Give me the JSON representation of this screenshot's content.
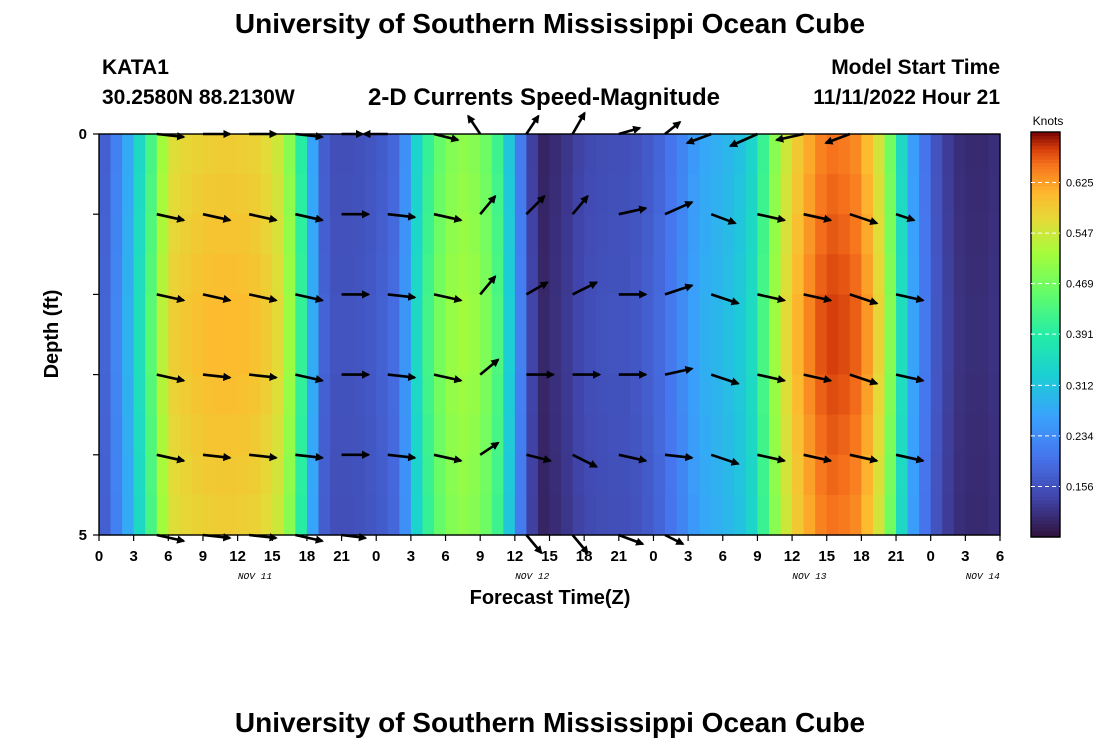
{
  "header": {
    "title": "University of Southern Mississippi Ocean Cube",
    "station": "KATA1",
    "coordinates": "30.2580N  88.2130W",
    "chart_title": "2-D Currents Speed-Magnitude",
    "model_start_label": "Model Start Time",
    "model_start_value": "11/11/2022 Hour 21"
  },
  "footer": {
    "title": "University of Southern Mississippi Ocean Cube"
  },
  "chart_data": {
    "type": "heatmap",
    "title": "2-D Currents Speed-Magnitude",
    "xlabel": "Forecast Time(Z)",
    "ylabel": "Depth (ft)",
    "x_tick_labels": [
      "0",
      "3",
      "6",
      "9",
      "12",
      "15",
      "18",
      "21",
      "0",
      "3",
      "6",
      "9",
      "12",
      "15",
      "18",
      "21",
      "0",
      "3",
      "6",
      "9",
      "12",
      "15",
      "18",
      "21",
      "0",
      "3",
      "6"
    ],
    "date_labels": [
      {
        "label": "NOV 11",
        "tick_index": 4.5
      },
      {
        "label": "NOV 12",
        "tick_index": 12.5
      },
      {
        "label": "NOV 13",
        "tick_index": 20.5
      },
      {
        "label": "NOV 14",
        "tick_index": 25.5
      }
    ],
    "xlim_hours": [
      0,
      78
    ],
    "ylim_ft": [
      0,
      5
    ],
    "y_tick_labels": [
      "0",
      "5"
    ],
    "colorbar": {
      "label": "Knots",
      "min": 0.078,
      "max": 0.703,
      "ticks": [
        0.156,
        0.234,
        0.312,
        0.391,
        0.469,
        0.547,
        0.625
      ],
      "tick_labels": [
        "0.156",
        "0.234",
        "0.312",
        "0.391",
        "0.469",
        "0.547",
        "0.625"
      ]
    },
    "speed_profile": {
      "hours": [
        0,
        2,
        4,
        6,
        8,
        10,
        12,
        14,
        16,
        18,
        19,
        20,
        21,
        22,
        24,
        26,
        28,
        30,
        32,
        34,
        35,
        36,
        38,
        40,
        42,
        44,
        46,
        48,
        50,
        52,
        54,
        56,
        57,
        58,
        60,
        62,
        63,
        64,
        66,
        68,
        70,
        72,
        74,
        76,
        78
      ],
      "speed_knots": [
        0.16,
        0.25,
        0.4,
        0.58,
        0.6,
        0.61,
        0.61,
        0.6,
        0.56,
        0.36,
        0.2,
        0.16,
        0.16,
        0.16,
        0.17,
        0.2,
        0.4,
        0.5,
        0.52,
        0.47,
        0.4,
        0.26,
        0.1,
        0.12,
        0.15,
        0.16,
        0.16,
        0.18,
        0.22,
        0.28,
        0.3,
        0.33,
        0.38,
        0.48,
        0.6,
        0.66,
        0.68,
        0.68,
        0.66,
        0.55,
        0.3,
        0.18,
        0.12,
        0.11,
        0.12
      ]
    },
    "vectors": {
      "hours": [
        5,
        9,
        13,
        17,
        21,
        25,
        29,
        33,
        37,
        41,
        45,
        49,
        53,
        57,
        61,
        65,
        69,
        73
      ],
      "depths_ft": [
        0,
        1,
        2,
        3,
        4,
        5
      ],
      "u": [
        [
          0.9,
          0.9,
          0.9,
          0.9,
          0.7,
          -0.8,
          0.8,
          -0.4,
          0.4,
          0.4,
          0.7,
          0.5,
          -0.8,
          -0.9,
          -0.9,
          -0.8,
          0.0,
          0.0
        ],
        [
          0.9,
          0.9,
          0.9,
          0.9,
          0.9,
          0.9,
          0.9,
          0.5,
          0.6,
          0.5,
          0.9,
          0.9,
          0.8,
          0.9,
          0.9,
          0.9,
          0.6,
          0.0
        ],
        [
          0.9,
          0.9,
          0.9,
          0.9,
          0.9,
          0.9,
          0.9,
          0.5,
          0.7,
          0.8,
          0.9,
          0.9,
          0.9,
          0.9,
          0.9,
          0.9,
          0.9,
          0.0
        ],
        [
          0.9,
          0.9,
          0.9,
          0.9,
          0.9,
          0.9,
          0.9,
          0.6,
          0.9,
          0.9,
          0.9,
          0.9,
          0.9,
          0.9,
          0.9,
          0.9,
          0.9,
          0.0
        ],
        [
          0.9,
          0.9,
          0.9,
          0.9,
          0.9,
          0.9,
          0.9,
          0.6,
          0.8,
          0.8,
          0.9,
          0.9,
          0.9,
          0.9,
          0.9,
          0.9,
          0.9,
          0.0
        ],
        [
          0.9,
          0.9,
          0.9,
          0.9,
          0.8,
          0.0,
          0.0,
          0.0,
          0.5,
          0.5,
          0.8,
          0.6,
          0.0,
          0.0,
          0.0,
          0.0,
          0.0,
          0.0
        ]
      ],
      "v": [
        [
          0.1,
          0.0,
          0.0,
          0.1,
          0.0,
          0.0,
          0.2,
          -0.6,
          -0.6,
          -0.7,
          -0.2,
          -0.4,
          0.3,
          0.4,
          0.2,
          0.3,
          0.0,
          0.0
        ],
        [
          0.2,
          0.2,
          0.2,
          0.2,
          0.0,
          0.1,
          0.2,
          -0.6,
          -0.6,
          -0.6,
          -0.2,
          -0.4,
          0.3,
          0.2,
          0.2,
          0.3,
          0.2,
          0.0
        ],
        [
          0.2,
          0.2,
          0.2,
          0.2,
          0.0,
          0.1,
          0.2,
          -0.6,
          -0.4,
          -0.4,
          0.0,
          -0.3,
          0.3,
          0.2,
          0.2,
          0.3,
          0.2,
          0.0
        ],
        [
          0.2,
          0.1,
          0.1,
          0.2,
          0.0,
          0.1,
          0.2,
          -0.5,
          0.0,
          0.0,
          0.0,
          -0.2,
          0.3,
          0.2,
          0.2,
          0.3,
          0.2,
          0.0
        ],
        [
          0.2,
          0.1,
          0.1,
          0.1,
          0.0,
          0.1,
          0.2,
          -0.4,
          0.2,
          0.4,
          0.2,
          0.1,
          0.3,
          0.2,
          0.2,
          0.2,
          0.2,
          0.0
        ],
        [
          0.2,
          0.1,
          0.1,
          0.2,
          0.1,
          0.0,
          0.0,
          0.0,
          0.6,
          0.6,
          0.3,
          0.3,
          0.0,
          0.0,
          0.0,
          0.0,
          0.0,
          0.0
        ]
      ]
    }
  }
}
